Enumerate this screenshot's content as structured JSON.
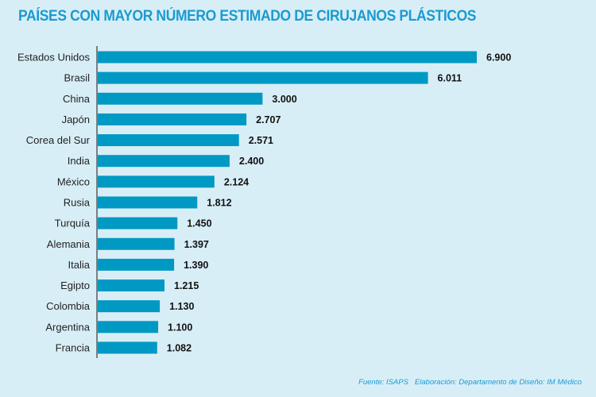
{
  "chart_data": {
    "type": "bar",
    "orientation": "horizontal",
    "title": "PAÍSES CON MAYOR NÚMERO ESTIMADO DE CIRUJANOS PLÁSTICOS",
    "categories": [
      "Estados Unidos",
      "Brasil",
      "China",
      "Japón",
      "Corea del Sur",
      "India",
      "México",
      "Rusia",
      "Turquía",
      "Alemania",
      "Italia",
      "Egipto",
      "Colombia",
      "Argentina",
      "Francia"
    ],
    "values": [
      6900,
      6011,
      3000,
      2707,
      2571,
      2400,
      2124,
      1812,
      1450,
      1397,
      1390,
      1215,
      1130,
      1100,
      1082
    ],
    "value_labels": [
      "6.900",
      "6.011",
      "3.000",
      "2.707",
      "2.571",
      "2.400",
      "2.124",
      "1.812",
      "1.450",
      "1.397",
      "1.390",
      "1.215",
      "1.130",
      "1.100",
      "1.082"
    ],
    "xlabel": "",
    "ylabel": "",
    "grid": false,
    "bar_color": "#0099c4"
  },
  "footer": "Fuente: ISAPS   Elaboración: Departamento de Diseño: IM Médico"
}
